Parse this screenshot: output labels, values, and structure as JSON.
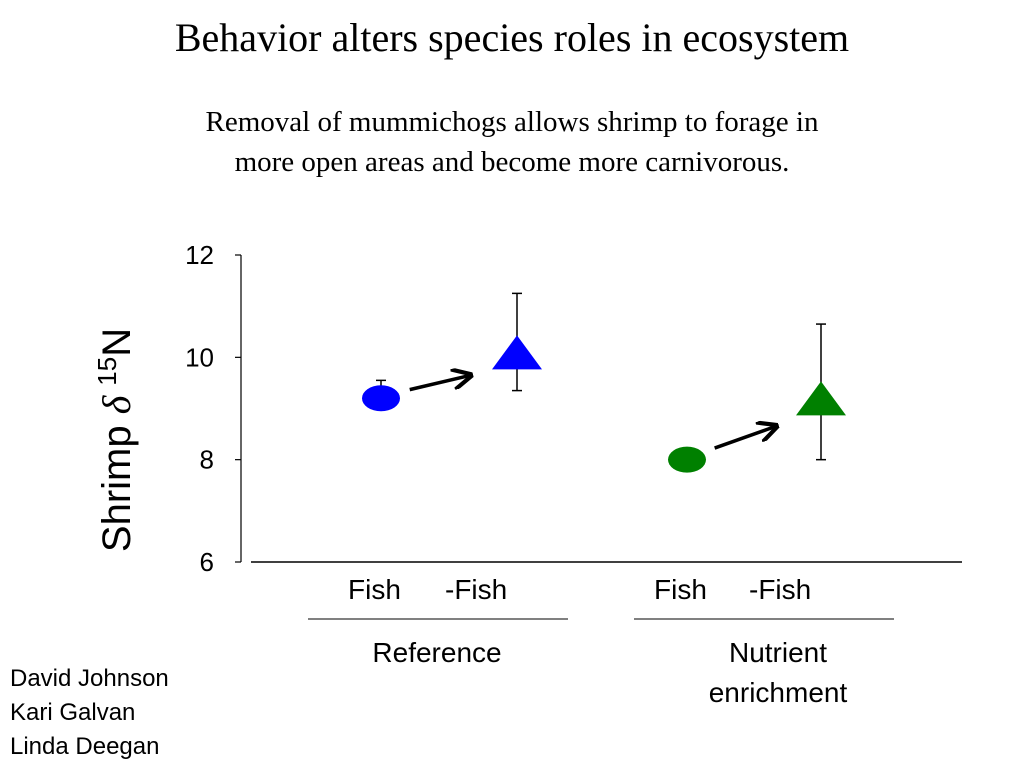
{
  "title": "Behavior alters species roles in ecosystem",
  "subtitle_lines": [
    "Removal of mummichogs allows shrimp to forage in",
    "more open areas and become more carnivorous."
  ],
  "authors": [
    "David Johnson",
    "Kari Galvan",
    "Linda Deegan"
  ],
  "chart_data": {
    "type": "scatter",
    "ylabel": {
      "text": "Shrimp",
      "delta": "δ",
      "superscript": "15",
      "element": "N"
    },
    "ylim": [
      6,
      12
    ],
    "yticks": [
      6,
      8,
      10,
      12
    ],
    "groups": [
      {
        "label_lines": [
          "Reference"
        ],
        "color": "#0000ff"
      },
      {
        "label_lines": [
          "Nutrient",
          "enrichment"
        ],
        "color": "#008000"
      }
    ],
    "categories": [
      "Fish",
      "-Fish",
      "Fish",
      "-Fish"
    ],
    "points": [
      {
        "group": 0,
        "category": "Fish",
        "marker": "circle",
        "y": 9.2,
        "err_low": 9.2,
        "err_high": 9.55
      },
      {
        "group": 0,
        "category": "-Fish",
        "marker": "triangle",
        "y": 10.0,
        "err_low": 9.35,
        "err_high": 11.25
      },
      {
        "group": 1,
        "category": "Fish",
        "marker": "circle",
        "y": 8.0,
        "err_low": null,
        "err_high": null
      },
      {
        "group": 1,
        "category": "-Fish",
        "marker": "triangle",
        "y": 9.1,
        "err_low": 8.0,
        "err_high": 10.65
      }
    ],
    "arrows": [
      {
        "from": 0,
        "to": 1
      },
      {
        "from": 2,
        "to": 3
      }
    ],
    "grid": false,
    "legend": "none"
  }
}
